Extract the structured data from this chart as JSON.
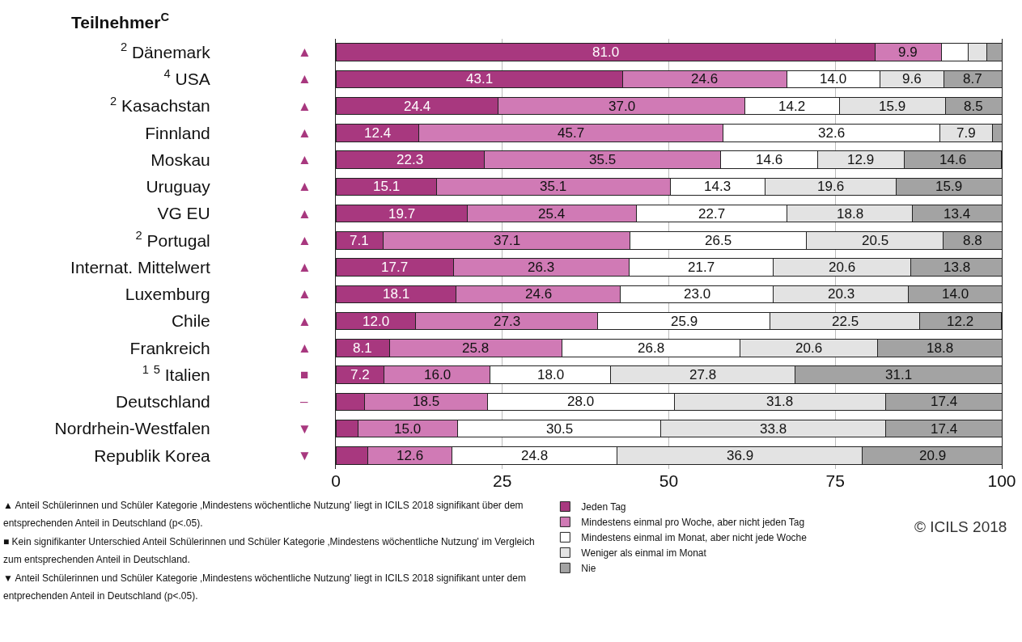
{
  "chart_data": {
    "type": "bar",
    "orientation": "horizontal",
    "stacked": true,
    "title": "Teilnehmer$^{C}$",
    "categories": [
      "$^{2}$ Dänemark",
      "$^{4}$ USA",
      "$^{2}$ Kasachstan",
      "Finnland",
      "Moskau",
      "Uruguay",
      "VG EU",
      "$^{2}$ Portugal",
      "Internat. Mittelwert",
      "Luxemburg",
      "Chile",
      "Frankreich",
      "$^{1}$ $^{5}$ Italien",
      "Deutschland",
      "Nordrhein-Westfalen",
      "Republik Korea"
    ],
    "series": [
      {
        "name": "Jeden Tag",
        "color": "#a8387f",
        "values": [
          81.0,
          43.1,
          24.4,
          12.4,
          22.3,
          15.1,
          19.7,
          7.1,
          17.7,
          18.1,
          12.0,
          8.1,
          7.2,
          4.3,
          3.3,
          4.8
        ],
        "value_labels": [
          "81.0",
          "43.1",
          "24.4",
          "12.4",
          "22.3",
          "15.1",
          "19.7",
          "7.1",
          "17.7",
          "18.1",
          "12.0",
          "8.1",
          "7.2",
          null,
          null,
          null
        ]
      },
      {
        "name": "Mindestens einmal pro Woche, aber nicht jeden Tag",
        "color": "#d07ab5",
        "values": [
          9.9,
          24.6,
          37.0,
          45.7,
          35.5,
          35.1,
          25.4,
          37.1,
          26.3,
          24.6,
          27.3,
          25.8,
          16.0,
          18.5,
          15.0,
          12.6
        ],
        "value_labels": [
          "9.9",
          "24.6",
          "37.0",
          "45.7",
          "35.5",
          "35.1",
          "25.4",
          "37.1",
          "26.3",
          "24.6",
          "27.3",
          "25.8",
          "16.0",
          "18.5",
          "15.0",
          "12.6"
        ]
      },
      {
        "name": "Mindestens einmal im Monat, aber nicht jede Woche",
        "color": "#ffffff",
        "values": [
          4.1,
          14.0,
          14.2,
          32.6,
          14.6,
          14.3,
          22.7,
          26.5,
          21.7,
          23.0,
          25.9,
          26.8,
          18.0,
          28.0,
          30.5,
          24.8
        ],
        "value_labels": [
          null,
          "14.0",
          "14.2",
          "32.6",
          "14.6",
          "14.3",
          "22.7",
          "26.5",
          "21.7",
          "23.0",
          "25.9",
          "26.8",
          "18.0",
          "28.0",
          "30.5",
          "24.8"
        ]
      },
      {
        "name": "Weniger als einmal im Monat",
        "color": "#e3e3e3",
        "values": [
          2.8,
          9.6,
          15.9,
          7.9,
          12.9,
          19.6,
          18.8,
          20.5,
          20.6,
          20.3,
          22.5,
          20.6,
          27.8,
          31.8,
          33.8,
          36.9
        ],
        "value_labels": [
          null,
          "9.6",
          "15.9",
          "7.9",
          "12.9",
          "19.6",
          "18.8",
          "20.5",
          "20.6",
          "20.3",
          "22.5",
          "20.6",
          "27.8",
          "31.8",
          "33.8",
          "36.9"
        ]
      },
      {
        "name": "Nie",
        "color": "#a3a3a3",
        "values": [
          2.2,
          8.7,
          8.5,
          1.4,
          14.6,
          15.9,
          13.4,
          8.8,
          13.8,
          14.0,
          12.2,
          18.8,
          31.1,
          17.4,
          17.4,
          20.9
        ],
        "value_labels": [
          null,
          "8.7",
          "8.5",
          null,
          "14.6",
          "15.9",
          "13.4",
          "8.8",
          "13.8",
          "14.0",
          "12.2",
          "18.8",
          "31.1",
          "17.4",
          "17.4",
          "20.9"
        ]
      }
    ],
    "xlim": [
      0,
      100
    ],
    "xticks": [
      0,
      25,
      50,
      75,
      100
    ],
    "grid": "x",
    "legend": "bottom",
    "annotations": [
      "▲",
      "▲",
      "▲",
      "▲",
      "▲",
      "▲",
      "▲",
      "▲",
      "▲",
      "▲",
      "▲",
      "▲",
      "■",
      "–",
      "▼",
      "▼",
      "▲ Anteil Schülerinnen und Schüler Kategorie ‚Mindestens wöchentliche Nutzung' liegt in ICILS 2018 signifikant über dem entsprechenden Anteil in Deutschland (p<.05).",
      "■ Kein signifikanter Unterschied Anteil Schülerinnen und Schüler Kategorie ‚Mindestens wöchentliche Nutzung' im Vergleich zum entsprechenden Anteil in Deutschland.",
      "▼ Anteil Schülerinnen und Schüler Kategorie ‚Mindestens wöchentliche Nutzung' liegt in ICILS 2018 signifikant unter dem entprechenden Anteil in Deutschland (p<.05).",
      "© ICILS 2018"
    ]
  }
}
